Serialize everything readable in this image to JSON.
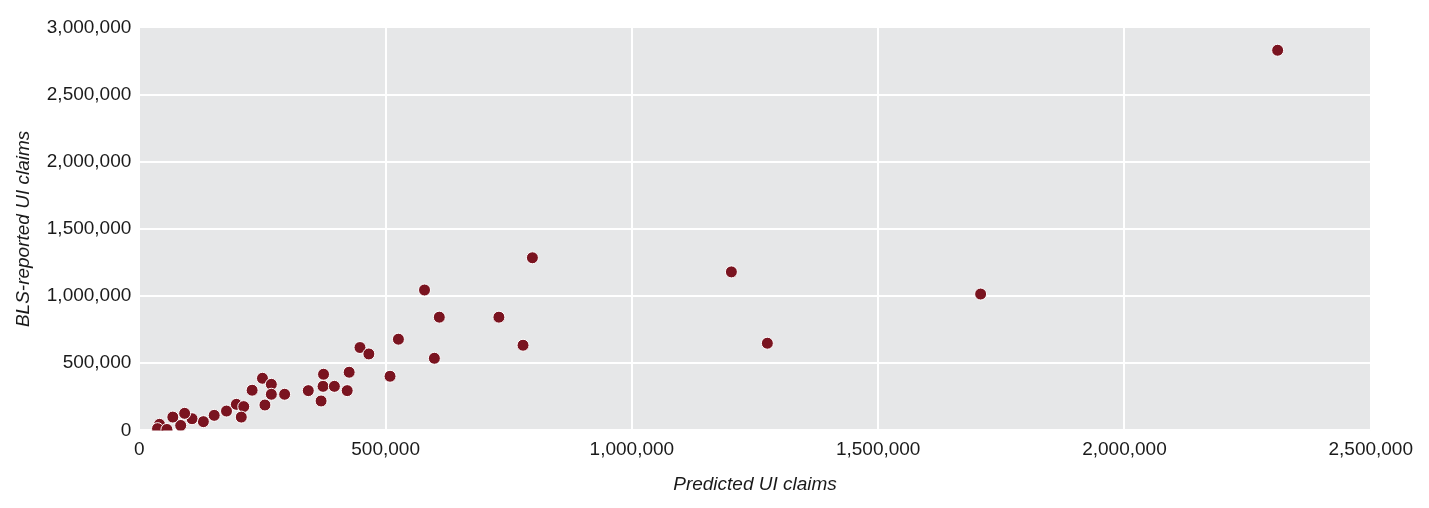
{
  "chart_data": {
    "type": "scatter",
    "xlabel": "Predicted UI claims",
    "ylabel": "BLS-reported UI claims",
    "series": [
      {
        "color": "#7a1420",
        "x": [
          2311000,
          1708000,
          1202000,
          1275000,
          798000,
          579000,
          730000,
          609000,
          779000,
          526000,
          599000,
          509000,
          448000,
          466000,
          426000,
          374000,
          373000,
          396000,
          343000,
          422000,
          369000,
          250000,
          268000,
          229000,
          268000,
          295000,
          255000,
          197000,
          212000,
          207000,
          177000,
          152000,
          130000,
          107000,
          92000,
          84000,
          68000,
          41000,
          37000,
          56000
        ],
        "values": [
          2830000,
          1015000,
          1180000,
          649000,
          1285000,
          1045000,
          843000,
          843000,
          634000,
          679000,
          537000,
          403000,
          617000,
          569000,
          433000,
          418000,
          328000,
          328000,
          296000,
          296000,
          219000,
          388000,
          343000,
          299000,
          269000,
          269000,
          189000,
          194000,
          177000,
          99000,
          144000,
          112000,
          65000,
          87000,
          127000,
          37000,
          99000,
          45000,
          13000,
          7000
        ]
      }
    ],
    "xlim": [
      0,
      2500000
    ],
    "ylim": [
      0,
      3000000
    ],
    "xticks": [
      0,
      {
        "value": 500000,
        "label": "500,000"
      },
      {
        "value": 1000000,
        "label": "1,000,000"
      },
      {
        "value": 1500000,
        "label": "1,500,000"
      },
      {
        "value": 2000000,
        "label": "2,000,000"
      },
      {
        "value": 2500000,
        "label": "2,500,000"
      }
    ],
    "yticks": [
      0,
      {
        "value": 500000,
        "label": "500,000"
      },
      {
        "value": 1000000,
        "label": "1,000,000"
      },
      {
        "value": 1500000,
        "label": "1,500,000"
      },
      {
        "value": 2000000,
        "label": "2,000,000"
      },
      {
        "value": 2500000,
        "label": "2,500,000"
      },
      {
        "value": 3000000,
        "label": "3,000,000"
      }
    ],
    "grid": true,
    "marker": "circle",
    "legend": false
  }
}
